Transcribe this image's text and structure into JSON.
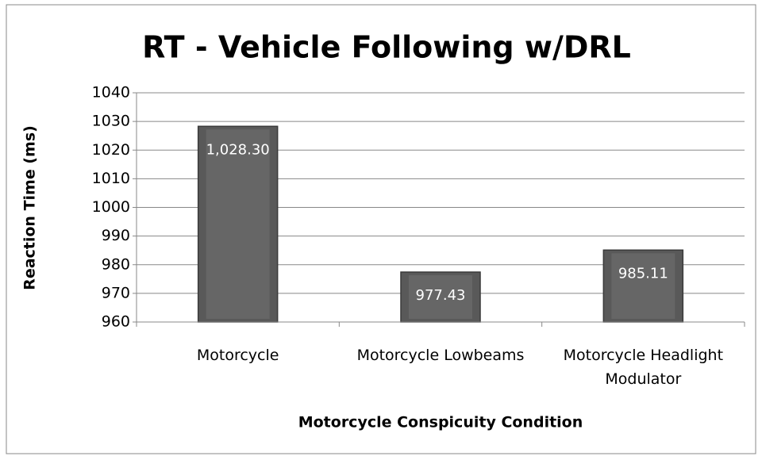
{
  "chart_data": {
    "type": "bar",
    "title": "RT - Vehicle Following w/DRL",
    "categories": [
      "Motorcycle",
      "Motorcycle Lowbeams",
      "Motorcycle Headlight Modulator"
    ],
    "values": [
      1028.3,
      977.43,
      985.11
    ],
    "value_labels": [
      "1,028.30",
      "977.43",
      "985.11"
    ],
    "color": "#595959",
    "x_label": "Motorcycle Conspicuity Condition",
    "y_label": "Reaction Time (ms)",
    "ylim": [
      960,
      1040
    ],
    "yticks": [
      960,
      970,
      980,
      990,
      1000,
      1010,
      1020,
      1030,
      1040
    ],
    "grid": true
  }
}
